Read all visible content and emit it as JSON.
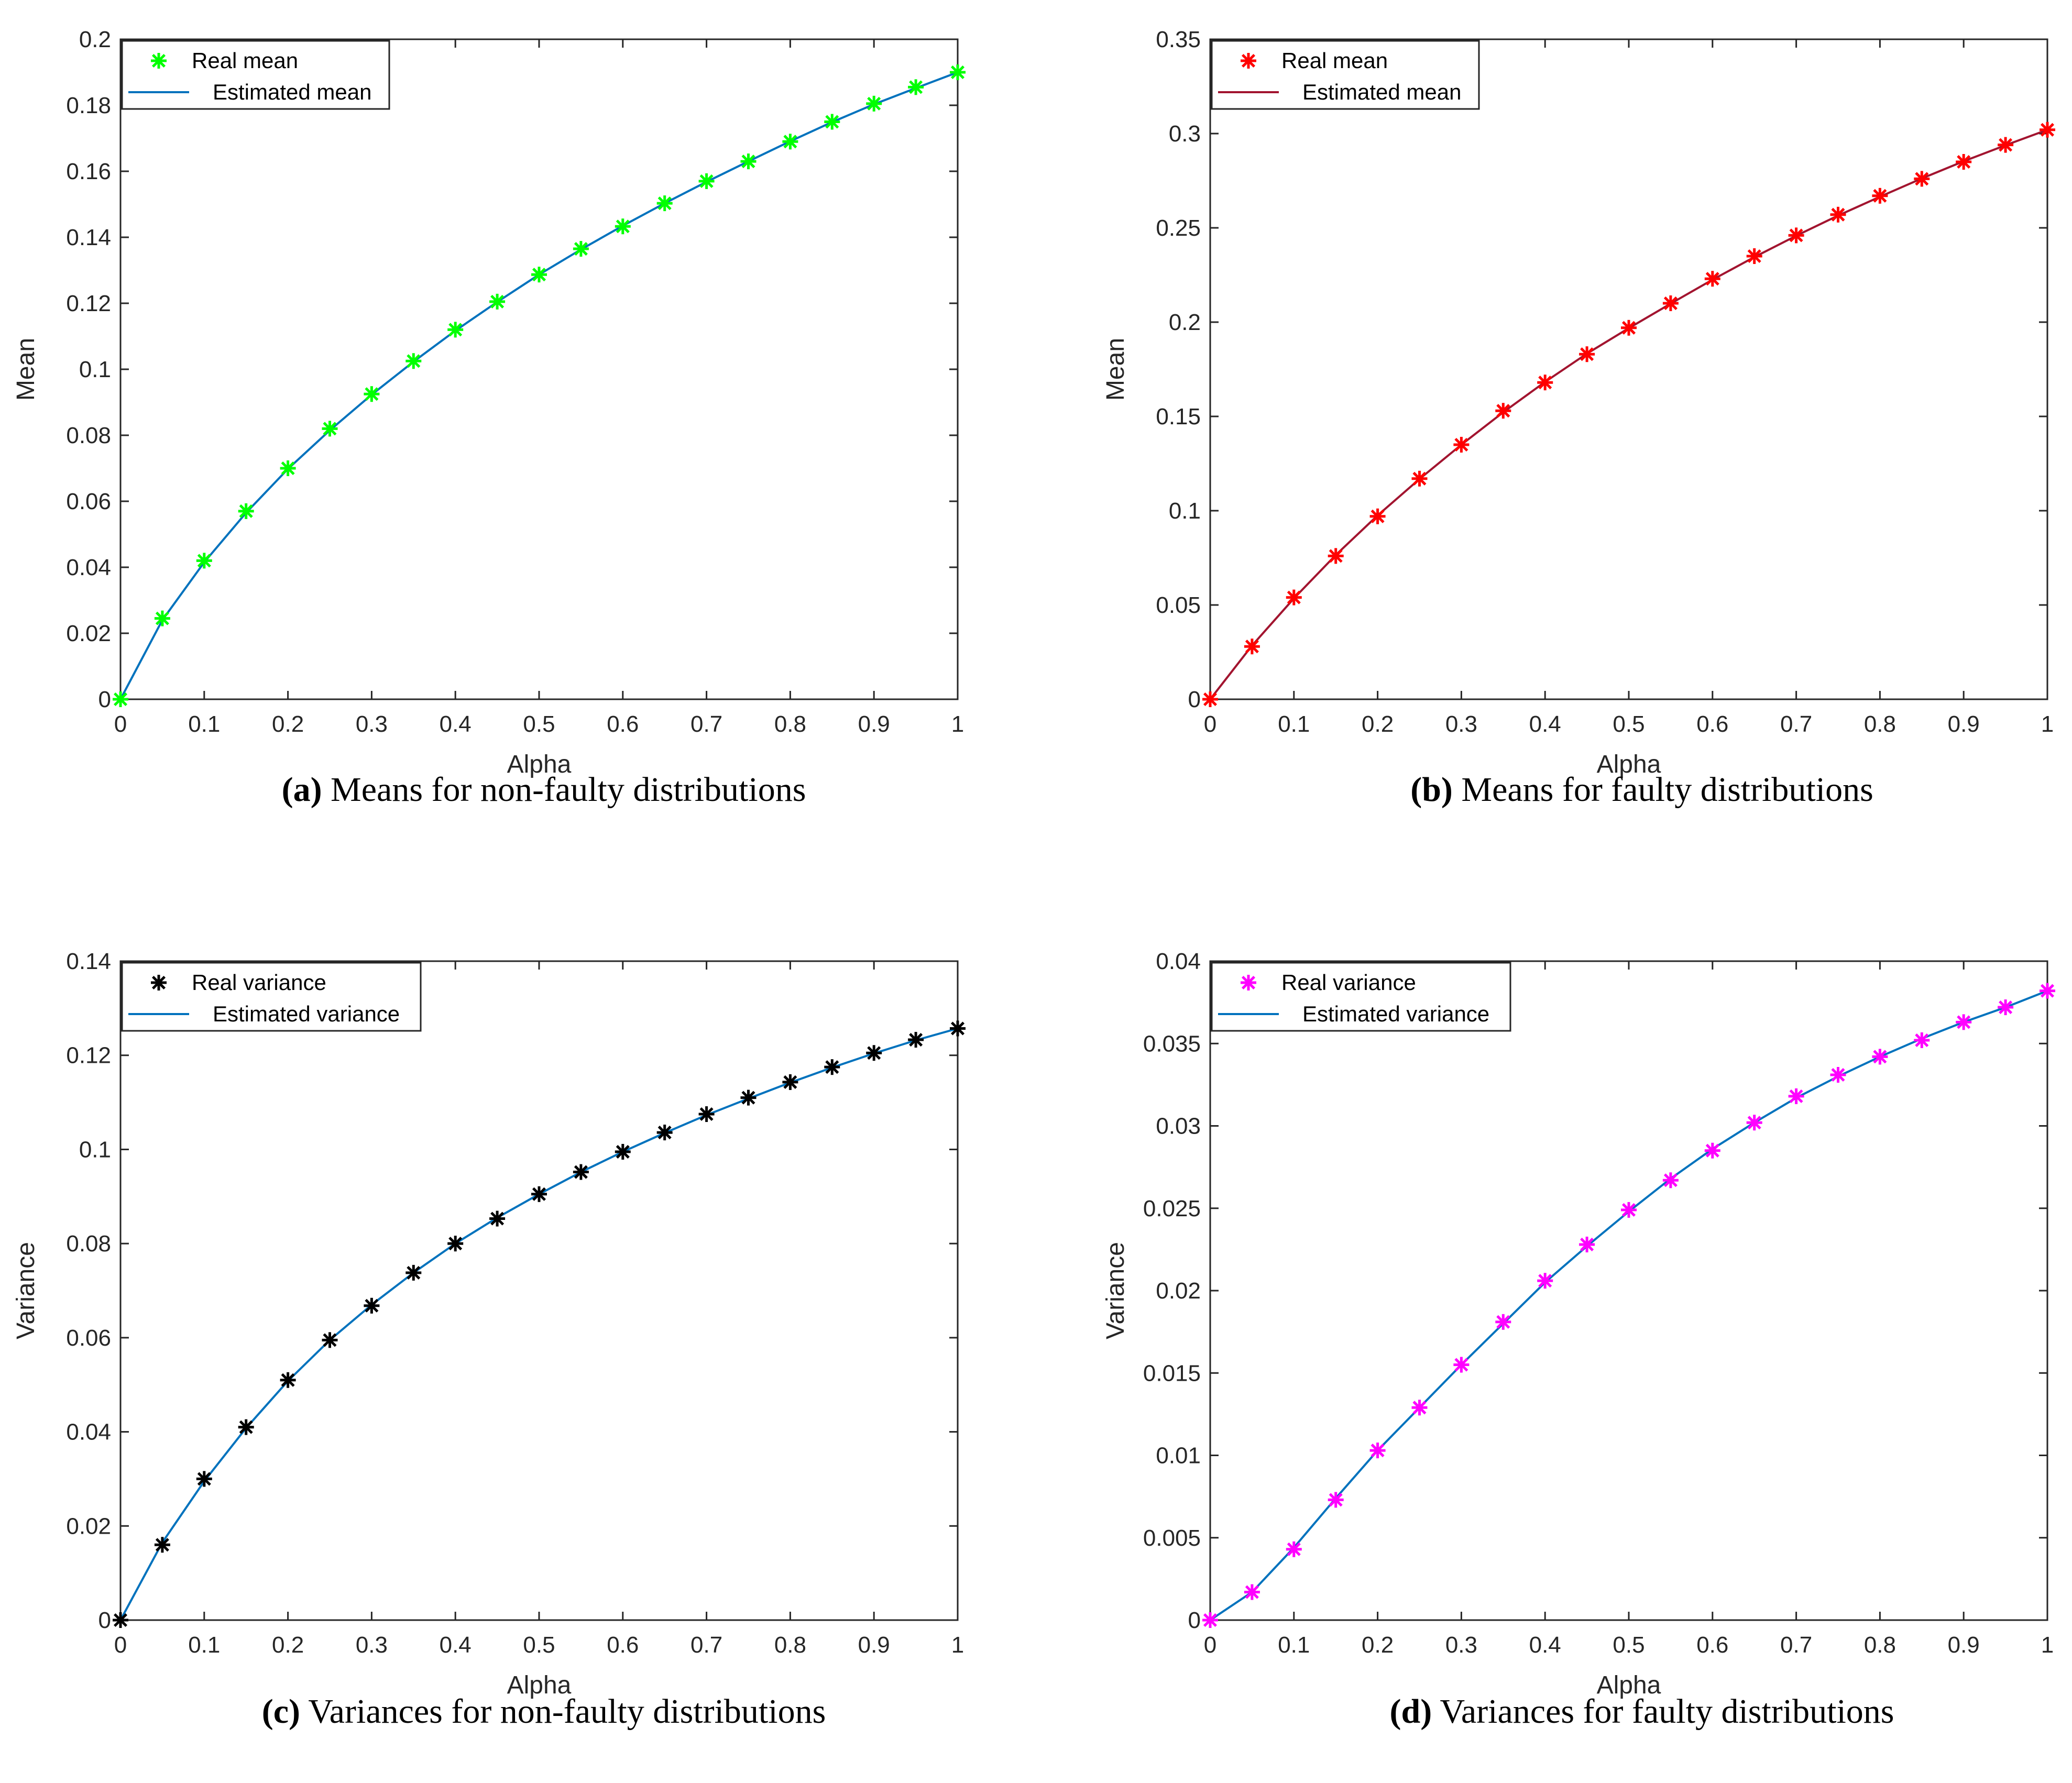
{
  "chart_data": [
    {
      "id": "a",
      "type": "line",
      "caption_letter": "a",
      "caption_text": "Means for non-faulty distributions",
      "xlabel": "Alpha",
      "ylabel": "Mean",
      "xlim": [
        0,
        1
      ],
      "ylim": [
        0,
        0.2
      ],
      "xticks": [
        0,
        0.1,
        0.2,
        0.3,
        0.4,
        0.5,
        0.6,
        0.7,
        0.8,
        0.9,
        1
      ],
      "xtick_labels": [
        "0",
        "0.1",
        "0.2",
        "0.3",
        "0.4",
        "0.5",
        "0.6",
        "0.7",
        "0.8",
        "0.9",
        "1"
      ],
      "yticks": [
        0,
        0.02,
        0.04,
        0.06,
        0.08,
        0.1,
        0.12,
        0.14,
        0.16,
        0.18,
        0.2
      ],
      "ytick_labels": [
        "0",
        "0.02",
        "0.04",
        "0.06",
        "0.08",
        "0.1",
        "0.12",
        "0.14",
        "0.16",
        "0.18",
        "0.2"
      ],
      "legend": {
        "position": "top-left",
        "marker_label": "Real mean",
        "line_label": "Estimated mean"
      },
      "marker_color": "#00ff00",
      "line_color": "#0072bd",
      "x": [
        0,
        0.05,
        0.1,
        0.15,
        0.2,
        0.25,
        0.3,
        0.35,
        0.4,
        0.45,
        0.5,
        0.55,
        0.6,
        0.65,
        0.7,
        0.75,
        0.8,
        0.85,
        0.9,
        0.95,
        1
      ],
      "series": [
        {
          "name": "Real mean",
          "style": "marker",
          "values": [
            0,
            0.0245,
            0.042,
            0.057,
            0.07,
            0.082,
            0.0925,
            0.1025,
            0.112,
            0.1205,
            0.1287,
            0.1365,
            0.1433,
            0.1503,
            0.157,
            0.163,
            0.169,
            0.175,
            0.1805,
            0.1855,
            0.19
          ]
        },
        {
          "name": "Estimated mean",
          "style": "line",
          "values": [
            0,
            0.024,
            0.0415,
            0.0565,
            0.0698,
            0.0815,
            0.0923,
            0.1023,
            0.1117,
            0.1204,
            0.1287,
            0.1363,
            0.1435,
            0.1503,
            0.1568,
            0.163,
            0.1691,
            0.1749,
            0.1803,
            0.1852,
            0.19
          ]
        }
      ]
    },
    {
      "id": "b",
      "type": "line",
      "caption_letter": "b",
      "caption_text": "Means for faulty distributions",
      "xlabel": "Alpha",
      "ylabel": "Mean",
      "xlim": [
        0,
        1
      ],
      "ylim": [
        0,
        0.35
      ],
      "xticks": [
        0,
        0.1,
        0.2,
        0.3,
        0.4,
        0.5,
        0.6,
        0.7,
        0.8,
        0.9,
        1
      ],
      "xtick_labels": [
        "0",
        "0.1",
        "0.2",
        "0.3",
        "0.4",
        "0.5",
        "0.6",
        "0.7",
        "0.8",
        "0.9",
        "1"
      ],
      "yticks": [
        0,
        0.05,
        0.1,
        0.15,
        0.2,
        0.25,
        0.3,
        0.35
      ],
      "ytick_labels": [
        "0",
        "0.05",
        "0.1",
        "0.15",
        "0.2",
        "0.25",
        "0.3",
        "0.35"
      ],
      "legend": {
        "position": "top-left",
        "marker_label": "Real mean",
        "line_label": "Estimated mean"
      },
      "marker_color": "#ff0000",
      "line_color": "#a2142f",
      "x": [
        0,
        0.05,
        0.1,
        0.15,
        0.2,
        0.25,
        0.3,
        0.35,
        0.4,
        0.45,
        0.5,
        0.55,
        0.6,
        0.65,
        0.7,
        0.75,
        0.8,
        0.85,
        0.9,
        0.95,
        1
      ],
      "series": [
        {
          "name": "Real mean",
          "style": "marker",
          "values": [
            0,
            0.028,
            0.054,
            0.076,
            0.097,
            0.117,
            0.135,
            0.153,
            0.168,
            0.183,
            0.197,
            0.21,
            0.223,
            0.235,
            0.246,
            0.257,
            0.267,
            0.276,
            0.285,
            0.294,
            0.302
          ]
        },
        {
          "name": "Estimated mean",
          "style": "line",
          "values": [
            0,
            0.0285,
            0.0535,
            0.0765,
            0.0975,
            0.1168,
            0.135,
            0.1522,
            0.1683,
            0.1833,
            0.1968,
            0.2098,
            0.2225,
            0.2345,
            0.2458,
            0.2565,
            0.2665,
            0.2762,
            0.2853,
            0.2938,
            0.302
          ]
        }
      ]
    },
    {
      "id": "c",
      "type": "line",
      "caption_letter": "c",
      "caption_text": "Variances for non-faulty distributions",
      "xlabel": "Alpha",
      "ylabel": "Variance",
      "xlim": [
        0,
        1
      ],
      "ylim": [
        0,
        0.14
      ],
      "xticks": [
        0,
        0.1,
        0.2,
        0.3,
        0.4,
        0.5,
        0.6,
        0.7,
        0.8,
        0.9,
        1
      ],
      "xtick_labels": [
        "0",
        "0.1",
        "0.2",
        "0.3",
        "0.4",
        "0.5",
        "0.6",
        "0.7",
        "0.8",
        "0.9",
        "1"
      ],
      "yticks": [
        0,
        0.02,
        0.04,
        0.06,
        0.08,
        0.1,
        0.12,
        0.14
      ],
      "ytick_labels": [
        "0",
        "0.02",
        "0.04",
        "0.06",
        "0.08",
        "0.1",
        "0.12",
        "0.14"
      ],
      "legend": {
        "position": "top-left",
        "marker_label": "Real variance",
        "line_label": "Estimated variance"
      },
      "marker_color": "#000000",
      "line_color": "#0072bd",
      "x": [
        0,
        0.05,
        0.1,
        0.15,
        0.2,
        0.25,
        0.3,
        0.35,
        0.4,
        0.45,
        0.5,
        0.55,
        0.6,
        0.65,
        0.7,
        0.75,
        0.8,
        0.85,
        0.9,
        0.95,
        1
      ],
      "series": [
        {
          "name": "Real variance",
          "style": "marker",
          "values": [
            0,
            0.016,
            0.03,
            0.041,
            0.051,
            0.0595,
            0.0668,
            0.0738,
            0.08,
            0.0853,
            0.0905,
            0.0952,
            0.0995,
            0.1036,
            0.1075,
            0.111,
            0.1143,
            0.1175,
            0.1205,
            0.1233,
            0.1257
          ]
        },
        {
          "name": "Estimated variance",
          "style": "line",
          "values": [
            0,
            0.0165,
            0.0295,
            0.0408,
            0.0508,
            0.0595,
            0.067,
            0.0738,
            0.08,
            0.0855,
            0.0905,
            0.0952,
            0.0995,
            0.1035,
            0.1073,
            0.1108,
            0.1142,
            0.1174,
            0.1204,
            0.1232,
            0.1257
          ]
        }
      ]
    },
    {
      "id": "d",
      "type": "line",
      "caption_letter": "d",
      "caption_text": "Variances for faulty distributions",
      "xlabel": "Alpha",
      "ylabel": "Variance",
      "xlim": [
        0,
        1
      ],
      "ylim": [
        0,
        0.04
      ],
      "xticks": [
        0,
        0.1,
        0.2,
        0.3,
        0.4,
        0.5,
        0.6,
        0.7,
        0.8,
        0.9,
        1
      ],
      "xtick_labels": [
        "0",
        "0.1",
        "0.2",
        "0.3",
        "0.4",
        "0.5",
        "0.6",
        "0.7",
        "0.8",
        "0.9",
        "1"
      ],
      "yticks": [
        0,
        0.005,
        0.01,
        0.015,
        0.02,
        0.025,
        0.03,
        0.035,
        0.04
      ],
      "ytick_labels": [
        "0",
        "0.005",
        "0.01",
        "0.015",
        "0.02",
        "0.025",
        "0.03",
        "0.035",
        "0.04"
      ],
      "legend": {
        "position": "top-left",
        "marker_label": "Real variance",
        "line_label": "Estimated variance"
      },
      "marker_color": "#ff00ff",
      "line_color": "#0072bd",
      "x": [
        0,
        0.05,
        0.1,
        0.15,
        0.2,
        0.25,
        0.3,
        0.35,
        0.4,
        0.45,
        0.5,
        0.55,
        0.6,
        0.65,
        0.7,
        0.75,
        0.8,
        0.85,
        0.9,
        0.95,
        1
      ],
      "series": [
        {
          "name": "Real variance",
          "style": "marker",
          "values": [
            0,
            0.0017,
            0.0043,
            0.0073,
            0.0103,
            0.0129,
            0.0155,
            0.0181,
            0.0206,
            0.0228,
            0.0249,
            0.0267,
            0.0285,
            0.0302,
            0.0318,
            0.0331,
            0.0342,
            0.0352,
            0.0363,
            0.0372,
            0.0382
          ]
        },
        {
          "name": "Estimated variance",
          "style": "line",
          "values": [
            0,
            0.0017,
            0.0044,
            0.0074,
            0.0103,
            0.0129,
            0.0155,
            0.018,
            0.0205,
            0.0227,
            0.0248,
            0.0268,
            0.0286,
            0.0302,
            0.0317,
            0.033,
            0.0342,
            0.0353,
            0.0363,
            0.0372,
            0.0382
          ]
        }
      ]
    }
  ]
}
